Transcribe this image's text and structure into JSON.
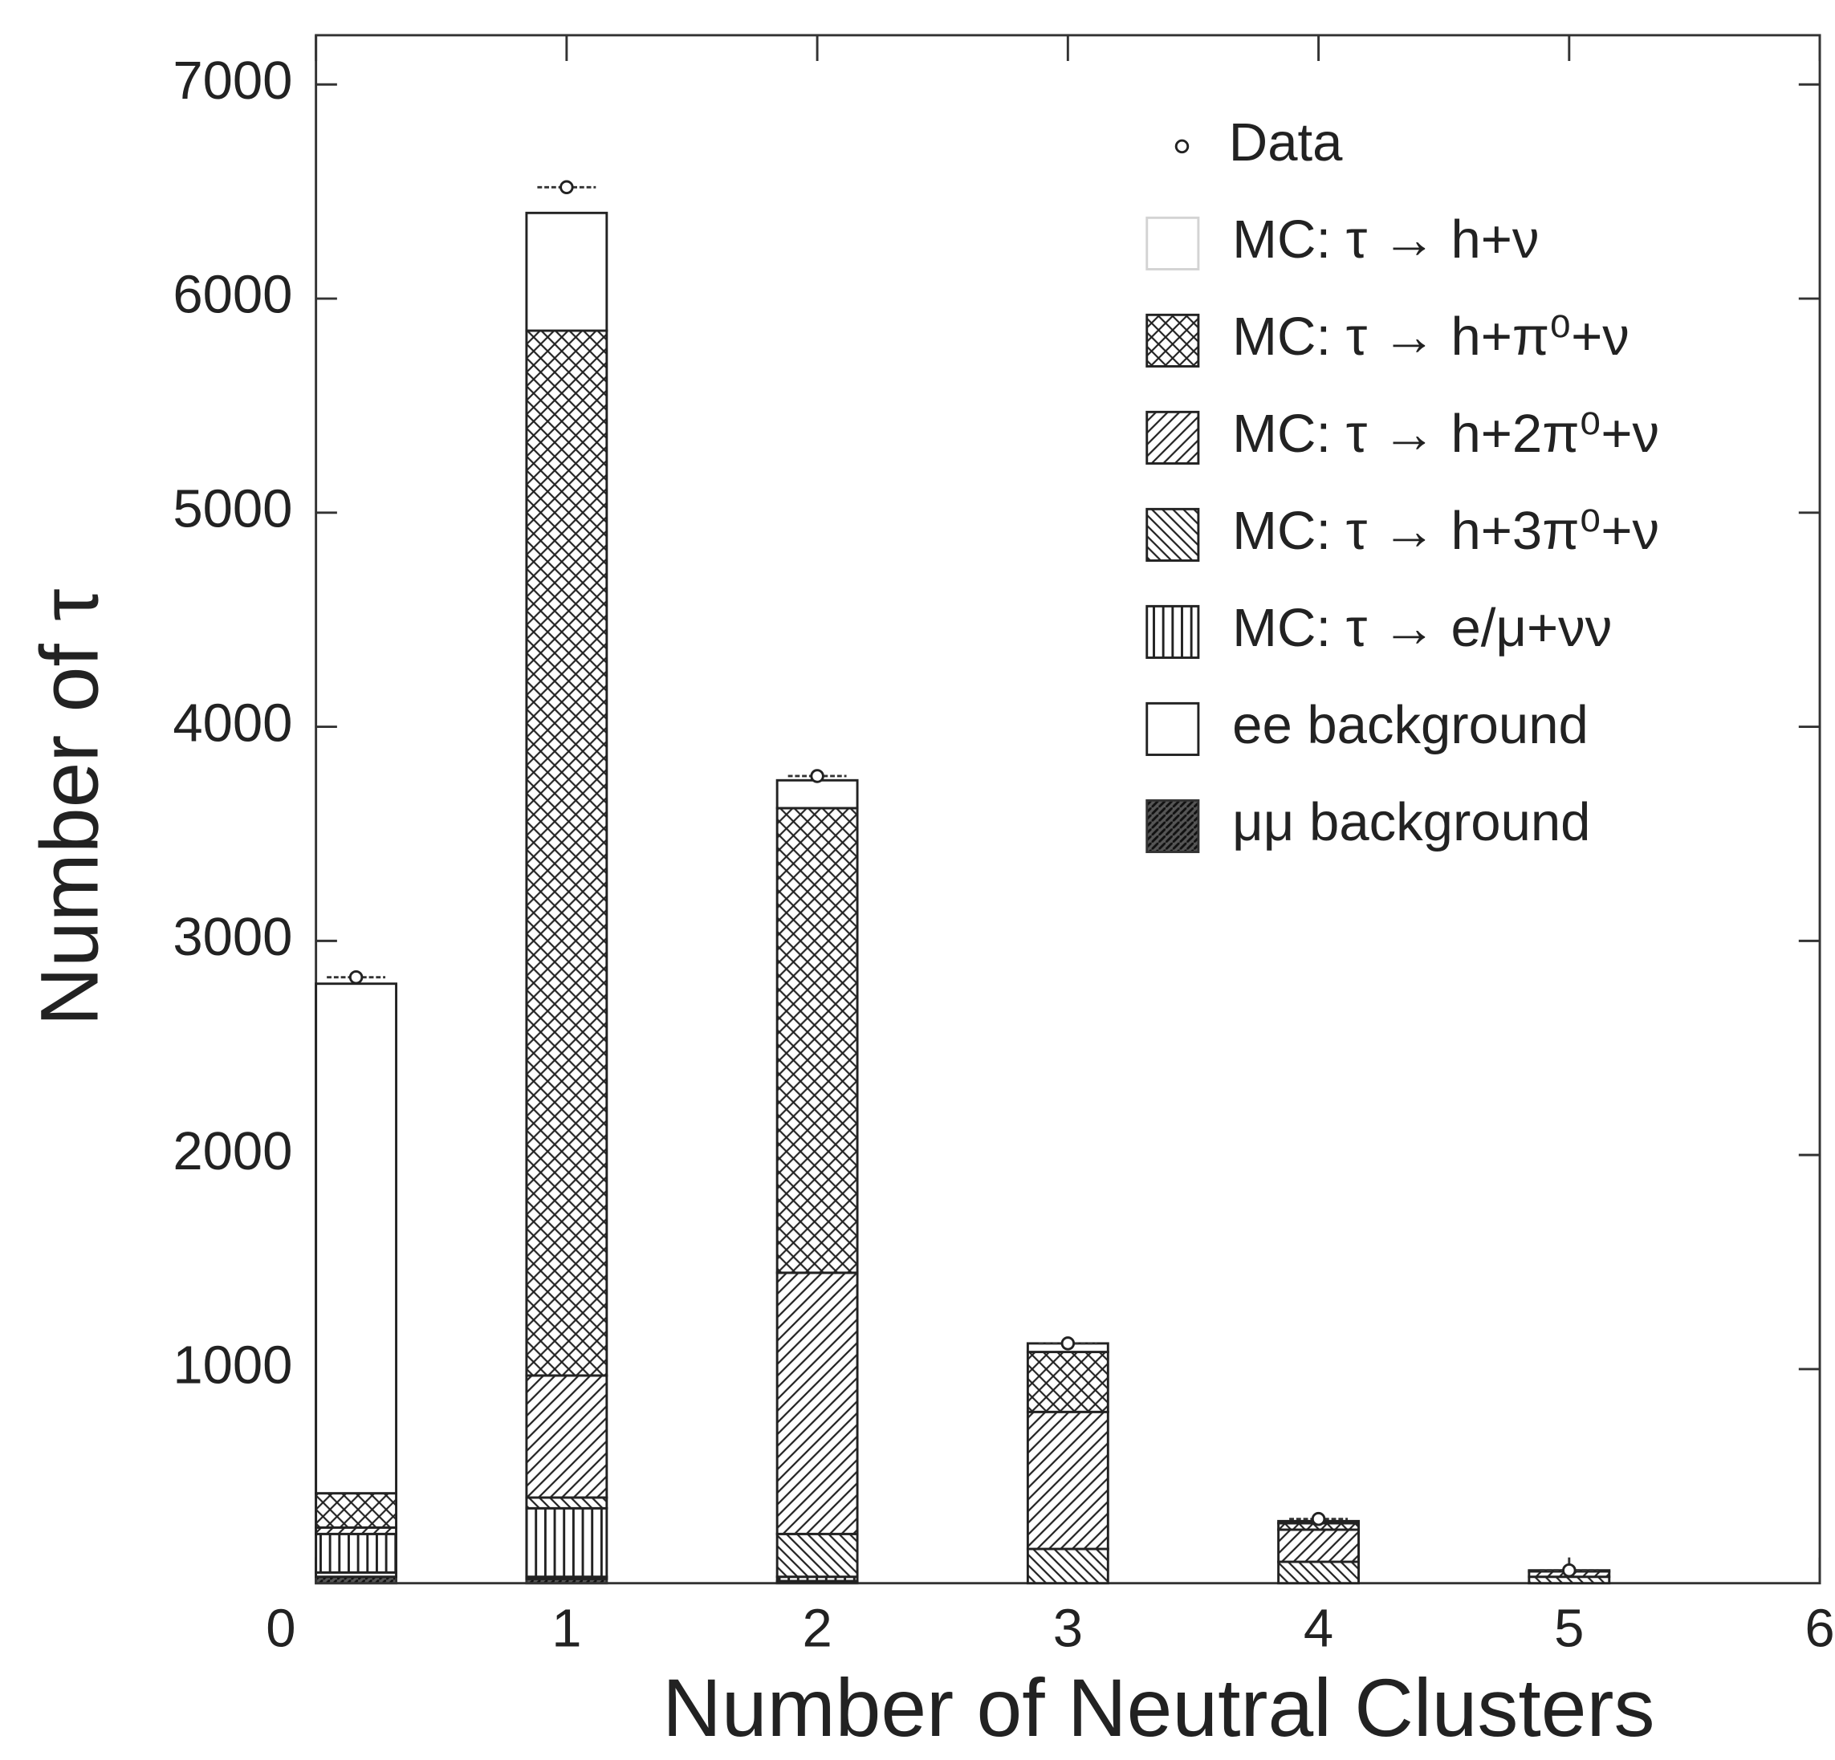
{
  "chart_data": {
    "type": "stacked-histogram",
    "xlabel": "Number of Neutral Clusters",
    "ylabel": "Number of τ",
    "x": [
      0,
      1,
      2,
      3,
      4,
      5
    ],
    "xlim": [
      0,
      6
    ],
    "xticks": [
      0,
      1,
      2,
      3,
      4,
      5,
      6
    ],
    "ylim": [
      0,
      7230
    ],
    "yticks": [
      1000,
      2000,
      3000,
      4000,
      5000,
      6000,
      7000
    ],
    "legend": "top-right",
    "series": [
      {
        "name": "μμ background",
        "hatch": "dense",
        "color": "#333333",
        "values": [
          30,
          20,
          5,
          0,
          0,
          0
        ]
      },
      {
        "name": "ee background",
        "hatch": "none",
        "color": "#222222",
        "values": [
          20,
          10,
          5,
          0,
          0,
          0
        ]
      },
      {
        "name": "MC: τ → e/μ+νν",
        "hatch": "vertical",
        "color": "#222222",
        "values": [
          180,
          320,
          20,
          0,
          0,
          0
        ]
      },
      {
        "name": "MC: τ → h+3π⁰+ν",
        "hatch": "backdiagonal",
        "color": "#222222",
        "values": [
          0,
          50,
          200,
          160,
          100,
          30
        ]
      },
      {
        "name": "MC: τ → h+2π⁰+ν",
        "hatch": "diagonal",
        "color": "#222222",
        "values": [
          30,
          570,
          1220,
          640,
          150,
          25
        ]
      },
      {
        "name": "MC: τ → h+π⁰+ν",
        "hatch": "crosshatch",
        "color": "#222222",
        "values": [
          160,
          4880,
          2170,
          280,
          30,
          5
        ]
      },
      {
        "name": "MC: τ → h+ν",
        "hatch": "none",
        "color": "#222222",
        "values": [
          2380,
          550,
          130,
          40,
          10,
          0
        ]
      }
    ],
    "data_points": {
      "name": "Data",
      "values": [
        2830,
        6520,
        3770,
        1120,
        300,
        60
      ]
    }
  }
}
